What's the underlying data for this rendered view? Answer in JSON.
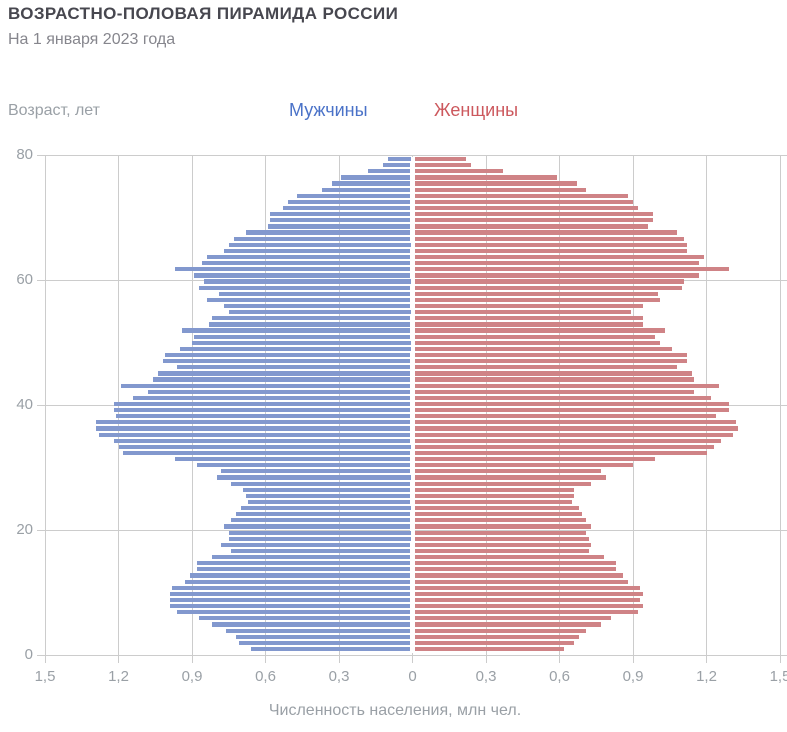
{
  "header": {
    "title": "ВОЗРАСТНО-ПОЛОВАЯ ПИРАМИДА РОССИИ",
    "subtitle": "На 1 января 2023 года"
  },
  "legend": {
    "male": "Мужчины",
    "female": "Женщины"
  },
  "axes": {
    "y_label": "Возраст, лет",
    "x_label": "Численность населения, млн чел.",
    "y_ticks": [
      "80",
      "60",
      "40",
      "20",
      "0"
    ],
    "x_ticks": [
      "1,5",
      "1,2",
      "0,9",
      "0,6",
      "0,3",
      "0",
      "0,3",
      "0,6",
      "0,9",
      "1,2",
      "1,5"
    ]
  },
  "colors": {
    "male_bar": "#8298ce",
    "female_bar": "#cf8386",
    "male_legend_text": "#4a72c8",
    "female_legend_text": "#cc585d",
    "gridline": "#cccccc",
    "axis_text": "#9aa0a6",
    "title_text": "#47474f",
    "subtitle_text": "#86868d"
  },
  "chart_data": {
    "type": "bar",
    "subtype": "population-pyramid",
    "title": "ВОЗРАСТНО-ПОЛОВАЯ ПИРАМИДА РОССИИ",
    "subtitle": "На 1 января 2023 года",
    "xlabel": "Численность населения, млн чел.",
    "ylabel": "Возраст, лет",
    "x_range_millions": [
      -1.5,
      1.5
    ],
    "x_tick_step_millions": 0.3,
    "age_min": 0,
    "age_max": 80,
    "y_tick_step_years": 20,
    "grid": true,
    "legend_position": "top-center",
    "units": "million people",
    "series": [
      {
        "name": "Мужчины",
        "side": "left",
        "color": "#8298ce",
        "values_by_age_0_to_80": [
          0.66,
          0.71,
          0.72,
          0.76,
          0.82,
          0.87,
          0.96,
          0.99,
          0.99,
          0.99,
          0.98,
          0.93,
          0.91,
          0.88,
          0.88,
          0.82,
          0.74,
          0.78,
          0.75,
          0.75,
          0.77,
          0.74,
          0.72,
          0.7,
          0.67,
          0.68,
          0.69,
          0.74,
          0.8,
          0.78,
          0.88,
          0.97,
          1.18,
          1.2,
          1.22,
          1.28,
          1.29,
          1.29,
          1.21,
          1.22,
          1.22,
          1.14,
          1.08,
          1.19,
          1.06,
          1.04,
          0.96,
          1.02,
          1.01,
          0.95,
          0.9,
          0.89,
          0.94,
          0.83,
          0.82,
          0.75,
          0.77,
          0.84,
          0.79,
          0.87,
          0.85,
          0.89,
          0.97,
          0.86,
          0.84,
          0.77,
          0.75,
          0.73,
          0.68,
          0.59,
          0.58,
          0.58,
          0.53,
          0.51,
          0.47,
          0.37,
          0.33,
          0.29,
          0.18,
          0.12,
          0.1
        ]
      },
      {
        "name": "Женщины",
        "side": "right",
        "color": "#cf8386",
        "values_by_age_0_to_80": [
          0.62,
          0.66,
          0.68,
          0.71,
          0.77,
          0.81,
          0.92,
          0.94,
          0.93,
          0.94,
          0.93,
          0.88,
          0.86,
          0.83,
          0.83,
          0.78,
          0.72,
          0.73,
          0.72,
          0.71,
          0.73,
          0.71,
          0.69,
          0.68,
          0.65,
          0.66,
          0.66,
          0.73,
          0.79,
          0.77,
          0.9,
          0.99,
          1.2,
          1.23,
          1.26,
          1.31,
          1.33,
          1.32,
          1.24,
          1.29,
          1.29,
          1.22,
          1.15,
          1.25,
          1.15,
          1.14,
          1.08,
          1.12,
          1.12,
          1.06,
          1.01,
          0.99,
          1.03,
          0.94,
          0.94,
          0.89,
          0.94,
          1.01,
          1.0,
          1.1,
          1.11,
          1.17,
          1.29,
          1.17,
          1.19,
          1.12,
          1.12,
          1.11,
          1.08,
          0.96,
          0.98,
          0.98,
          0.92,
          0.9,
          0.88,
          0.71,
          0.67,
          0.59,
          0.37,
          0.24,
          0.22
        ]
      }
    ]
  }
}
